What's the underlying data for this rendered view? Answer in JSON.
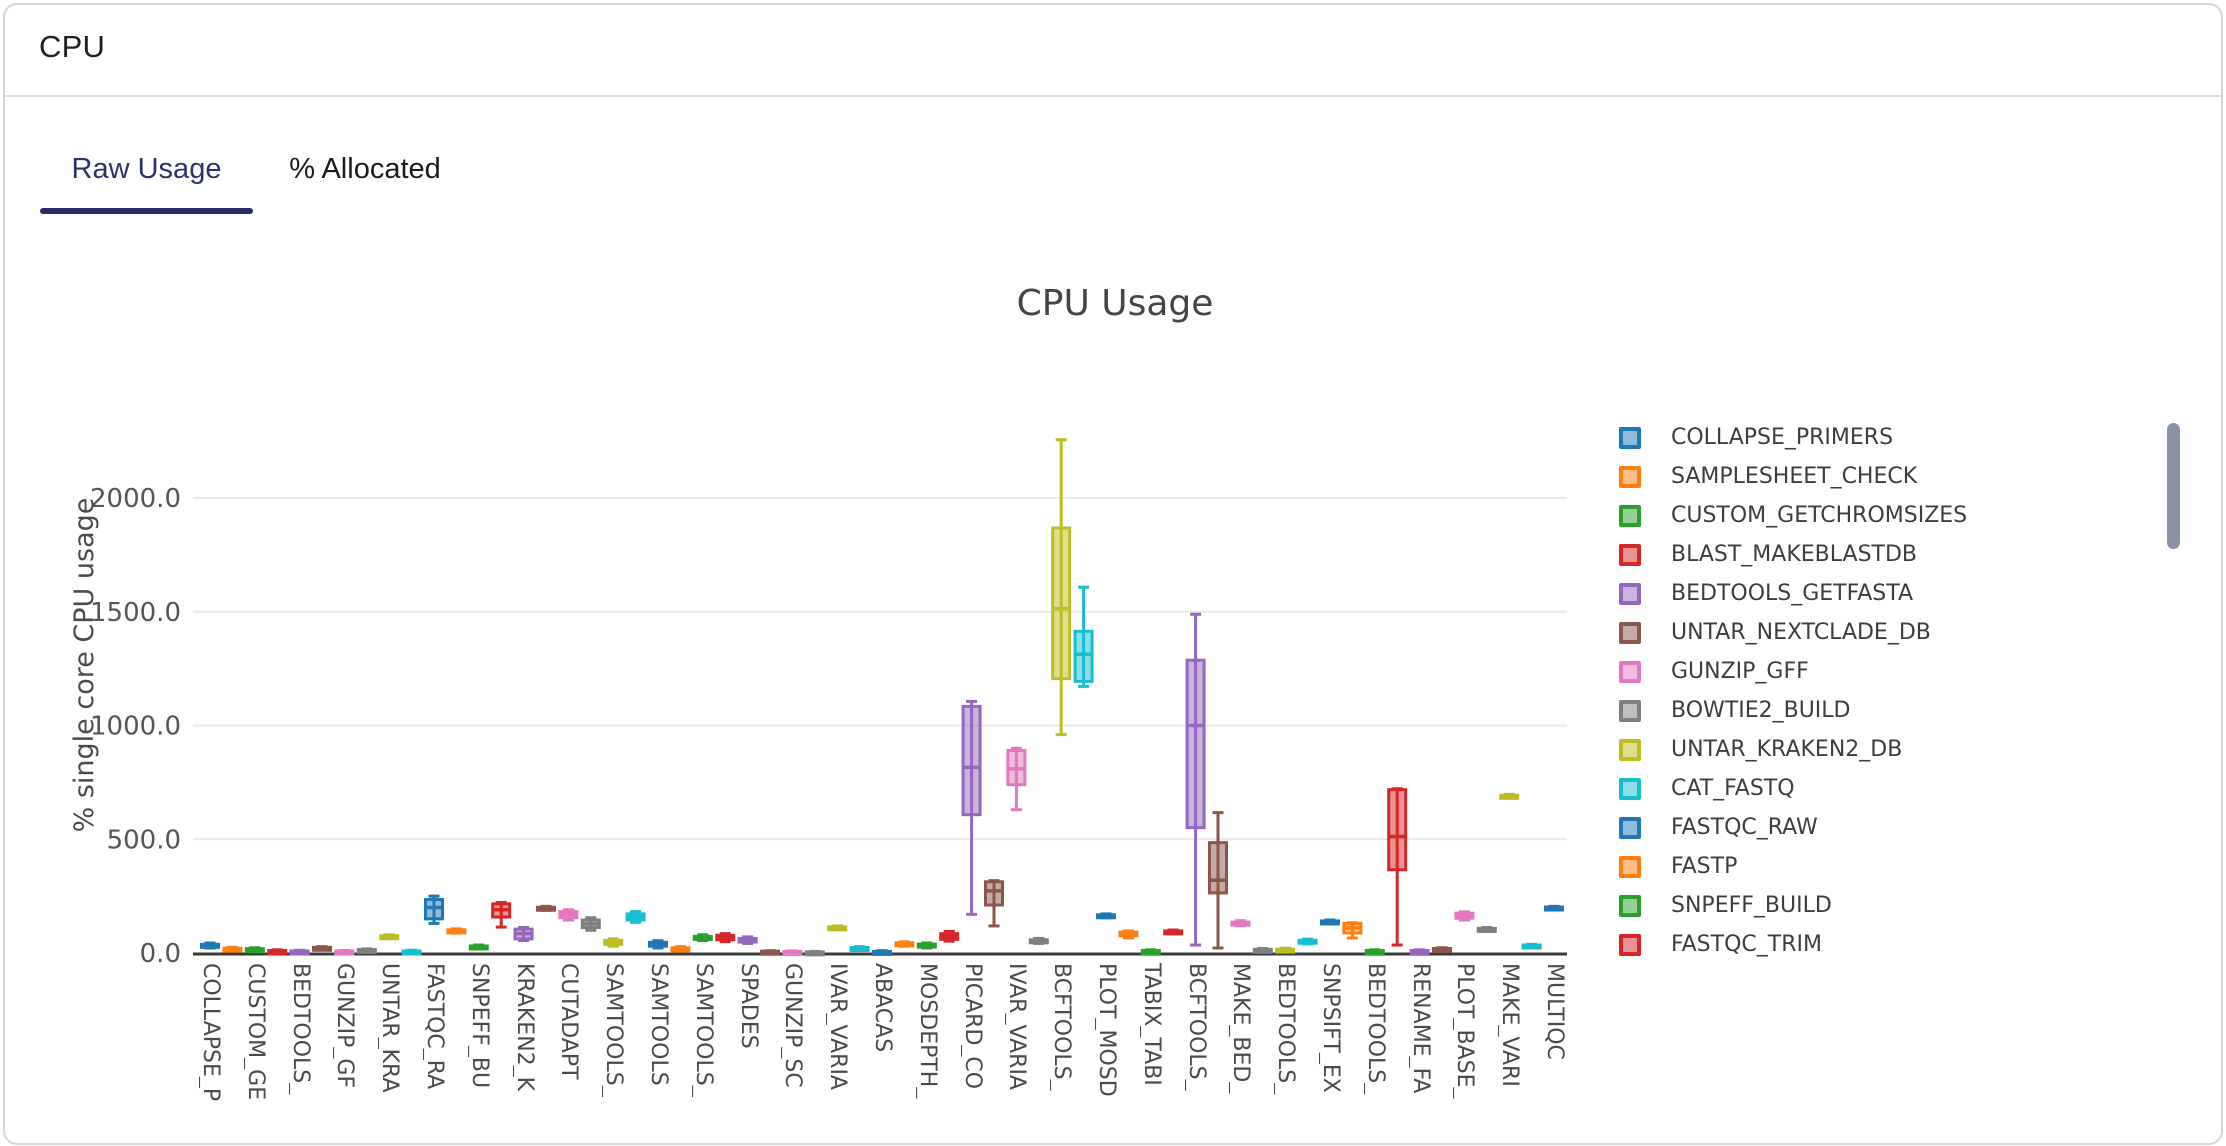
{
  "panel": {
    "title": "CPU"
  },
  "tabs": [
    {
      "label": "Raw Usage",
      "active": true
    },
    {
      "label": "% Allocated",
      "active": false
    }
  ],
  "colors": {
    "active_tab": "#2e3070",
    "tab_underline": "#2b2e66",
    "axis_line": "#3b3b3b",
    "grid_line": "#e9e9e9",
    "scrollbar_thumb": "#8a92a6"
  },
  "chart_data": {
    "type": "box",
    "title": "CPU Usage",
    "ylabel": "% single core CPU usage",
    "ytick_values": [
      0,
      500,
      1000,
      1500,
      2000
    ],
    "ytick_labels": [
      "0.0",
      "500.0",
      "1000.0",
      "1500.0",
      "2000.0"
    ],
    "ylim": [
      0,
      2330
    ],
    "grid": true,
    "legend_position": "right",
    "palette": [
      "#1f77b4",
      "#ff7f0e",
      "#2ca02c",
      "#d62728",
      "#9467bd",
      "#8c564b",
      "#e377c2",
      "#7f7f7f",
      "#bcbd22",
      "#17becf"
    ],
    "legend": [
      {
        "label": "COLLAPSE_PRIMERS",
        "color": "#1f77b4"
      },
      {
        "label": "SAMPLESHEET_CHECK",
        "color": "#ff7f0e"
      },
      {
        "label": "CUSTOM_GETCHROMSIZES",
        "color": "#2ca02c"
      },
      {
        "label": "BLAST_MAKEBLASTDB",
        "color": "#d62728"
      },
      {
        "label": "BEDTOOLS_GETFASTA",
        "color": "#9467bd"
      },
      {
        "label": "UNTAR_NEXTCLADE_DB",
        "color": "#8c564b"
      },
      {
        "label": "GUNZIP_GFF",
        "color": "#e377c2"
      },
      {
        "label": "BOWTIE2_BUILD",
        "color": "#7f7f7f"
      },
      {
        "label": "UNTAR_KRAKEN2_DB",
        "color": "#bcbd22"
      },
      {
        "label": "CAT_FASTQ",
        "color": "#17becf"
      },
      {
        "label": "FASTQC_RAW",
        "color": "#1f77b4"
      },
      {
        "label": "FASTP",
        "color": "#ff7f0e"
      },
      {
        "label": "SNPEFF_BUILD",
        "color": "#2ca02c"
      },
      {
        "label": "FASTQC_TRIM",
        "color": "#d62728"
      }
    ],
    "x_tick_labels": [
      "COLLAPSE_P",
      "CUSTOM_GE",
      "BEDTOOLS_",
      "GUNZIP_GF",
      "UNTAR_KRA",
      "FASTQC_RA",
      "SNPEFF_BU",
      "KRAKEN2_K",
      "CUTADAPT",
      "SAMTOOLS_",
      "SAMTOOLS",
      "SAMTOOLS_",
      "SPADES",
      "GUNZIP_SC",
      "IVAR_VARIA",
      "ABACAS",
      "MOSDEPTH_",
      "PICARD_CO",
      "IVAR_VARIA",
      "BCFTOOLS_",
      "PLOT_MOSD",
      "TABIX_TABI",
      "BCFTOOLS_",
      "MAKE_BED_",
      "BEDTOOLS_",
      "SNPSIFT_EX",
      "BEDTOOLS_",
      "RENAME_FA",
      "PLOT_BASE_",
      "MAKE_VARI",
      "MULTIQC"
    ],
    "x_tick_every": 2,
    "boxes": [
      [
        22,
        28,
        33,
        38,
        44
      ],
      [
        12,
        15,
        18,
        21,
        25
      ],
      [
        10,
        13,
        16,
        19,
        23
      ],
      [
        5,
        7,
        9,
        11,
        14
      ],
      [
        3,
        5,
        7,
        9,
        12
      ],
      [
        17,
        20,
        22,
        25,
        28
      ],
      [
        3,
        5,
        7,
        9,
        11
      ],
      [
        7,
        10,
        12,
        15,
        18
      ],
      [
        66,
        70,
        73,
        76,
        80
      ],
      [
        3,
        5,
        7,
        9,
        12
      ],
      [
        130,
        150,
        200,
        235,
        250
      ],
      [
        88,
        92,
        97,
        102,
        106
      ],
      [
        18,
        22,
        26,
        31,
        35
      ],
      [
        114,
        158,
        190,
        216,
        222
      ],
      [
        55,
        62,
        85,
        105,
        112
      ],
      [
        188,
        193,
        197,
        201,
        205
      ],
      [
        145,
        155,
        168,
        182,
        190
      ],
      [
        100,
        112,
        128,
        145,
        155
      ],
      [
        30,
        38,
        46,
        55,
        62
      ],
      [
        135,
        145,
        158,
        172,
        182
      ],
      [
        22,
        30,
        38,
        47,
        54
      ],
      [
        8,
        13,
        18,
        23,
        28
      ],
      [
        55,
        60,
        66,
        73,
        80
      ],
      [
        50,
        58,
        68,
        78,
        85
      ],
      [
        42,
        48,
        56,
        64,
        71
      ],
      [
        2,
        4,
        6,
        8,
        10
      ],
      [
        2,
        3,
        5,
        7,
        9
      ],
      [
        1,
        2,
        3,
        5,
        7
      ],
      [
        103,
        107,
        111,
        115,
        119
      ],
      [
        12,
        16,
        20,
        24,
        28
      ],
      [
        1,
        3,
        5,
        7,
        10
      ],
      [
        30,
        35,
        40,
        45,
        49
      ],
      [
        22,
        27,
        33,
        39,
        44
      ],
      [
        52,
        60,
        72,
        85,
        95
      ],
      [
        170,
        608,
        816,
        1084,
        1106
      ],
      [
        119,
        211,
        273,
        313,
        318
      ],
      [
        630,
        740,
        810,
        890,
        900
      ],
      [
        42,
        47,
        52,
        58,
        64
      ],
      [
        960,
        1206,
        1514,
        1868,
        2256
      ],
      [
        1172,
        1194,
        1313,
        1414,
        1608
      ],
      [
        155,
        159,
        163,
        168,
        172
      ],
      [
        66,
        76,
        84,
        92,
        97
      ],
      [
        4,
        6,
        8,
        11,
        14
      ],
      [
        85,
        89,
        93,
        97,
        101
      ],
      [
        35,
        551,
        1000,
        1287,
        1489
      ],
      [
        22,
        264,
        320,
        485,
        617
      ],
      [
        120,
        125,
        130,
        136,
        142
      ],
      [
        6,
        9,
        12,
        16,
        20
      ],
      [
        6,
        9,
        13,
        17,
        21
      ],
      [
        40,
        45,
        50,
        56,
        61
      ],
      [
        128,
        132,
        136,
        141,
        145
      ],
      [
        66,
        88,
        110,
        130,
        133
      ],
      [
        3,
        6,
        8,
        11,
        14
      ],
      [
        35,
        366,
        512,
        718,
        722
      ],
      [
        3,
        6,
        8,
        11,
        14
      ],
      [
        12,
        15,
        17,
        20,
        23
      ],
      [
        145,
        153,
        165,
        175,
        181
      ],
      [
        95,
        99,
        103,
        108,
        112
      ],
      [
        683,
        686,
        690,
        693,
        697
      ],
      [
        26,
        29,
        32,
        35,
        38
      ],
      [
        192,
        195,
        198,
        202,
        205
      ]
    ]
  }
}
